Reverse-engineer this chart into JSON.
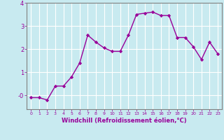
{
  "x": [
    0,
    1,
    2,
    3,
    4,
    5,
    6,
    7,
    8,
    9,
    10,
    11,
    12,
    13,
    14,
    15,
    16,
    17,
    18,
    19,
    20,
    21,
    22,
    23
  ],
  "y": [
    -0.1,
    -0.1,
    -0.2,
    0.4,
    0.4,
    0.8,
    1.4,
    2.6,
    2.3,
    2.05,
    1.9,
    1.9,
    2.6,
    3.5,
    3.55,
    3.6,
    3.45,
    3.45,
    2.5,
    2.5,
    2.1,
    1.55,
    2.3,
    1.8
  ],
  "line_color": "#990099",
  "marker": "D",
  "marker_size": 2.2,
  "bg_color": "#c8eaf0",
  "grid_color": "#ffffff",
  "xlabel": "Windchill (Refroidissement éolien,°C)",
  "xlabel_color": "#990099",
  "tick_color": "#990099",
  "ylim": [
    -0.6,
    4.0
  ],
  "xlim": [
    -0.5,
    23.5
  ],
  "yticks": [
    0,
    1,
    2,
    3,
    4
  ],
  "ytick_labels": [
    "-0",
    "1",
    "2",
    "3",
    "4"
  ],
  "xticks": [
    0,
    1,
    2,
    3,
    4,
    5,
    6,
    7,
    8,
    9,
    10,
    11,
    12,
    13,
    14,
    15,
    16,
    17,
    18,
    19,
    20,
    21,
    22,
    23
  ],
  "line_width": 1.0,
  "axis_color": "#990099",
  "spine_color": "#808080"
}
